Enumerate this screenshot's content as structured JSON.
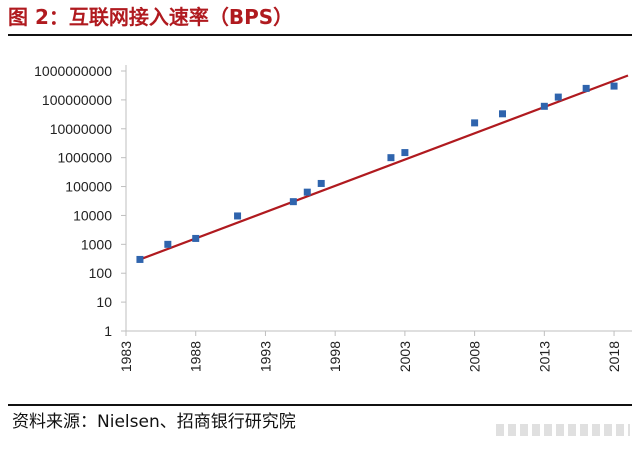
{
  "header": {
    "title": "图 2：互联网接入速率（BPS）"
  },
  "footer": {
    "source": "资料来源：Nielsen、招商银行研究院"
  },
  "chart_data": {
    "type": "scatter",
    "title": "互联网接入速率（BPS）",
    "y_scale": "log10",
    "xlim": [
      1983,
      2019
    ],
    "ylim": [
      1,
      1000000000
    ],
    "x_ticks": [
      "1983",
      "1988",
      "1993",
      "1998",
      "2003",
      "2008",
      "2013",
      "2018"
    ],
    "y_ticks": [
      "1",
      "10",
      "100",
      "1000",
      "10000",
      "100000",
      "1000000",
      "10000000",
      "100000000",
      "1000000000"
    ],
    "points": [
      {
        "x": 1984,
        "y": 300
      },
      {
        "x": 1986,
        "y": 1000
      },
      {
        "x": 1988,
        "y": 1600
      },
      {
        "x": 1991,
        "y": 9600
      },
      {
        "x": 1995,
        "y": 30000
      },
      {
        "x": 1996,
        "y": 64000
      },
      {
        "x": 1997,
        "y": 128000
      },
      {
        "x": 2002,
        "y": 1000000
      },
      {
        "x": 2003,
        "y": 1500000
      },
      {
        "x": 2008,
        "y": 16000000
      },
      {
        "x": 2010,
        "y": 33000000
      },
      {
        "x": 2013,
        "y": 60000000
      },
      {
        "x": 2014,
        "y": 125000000
      },
      {
        "x": 2016,
        "y": 250000000
      },
      {
        "x": 2018,
        "y": 300000000
      }
    ],
    "trendline": {
      "x": [
        1984,
        2019
      ],
      "y": [
        300,
        700000000
      ]
    },
    "colors": {
      "points": "#2f64ad",
      "trendline": "#b01a1f",
      "axis": "#bfbfbf"
    },
    "grid": false,
    "legend": "none"
  }
}
